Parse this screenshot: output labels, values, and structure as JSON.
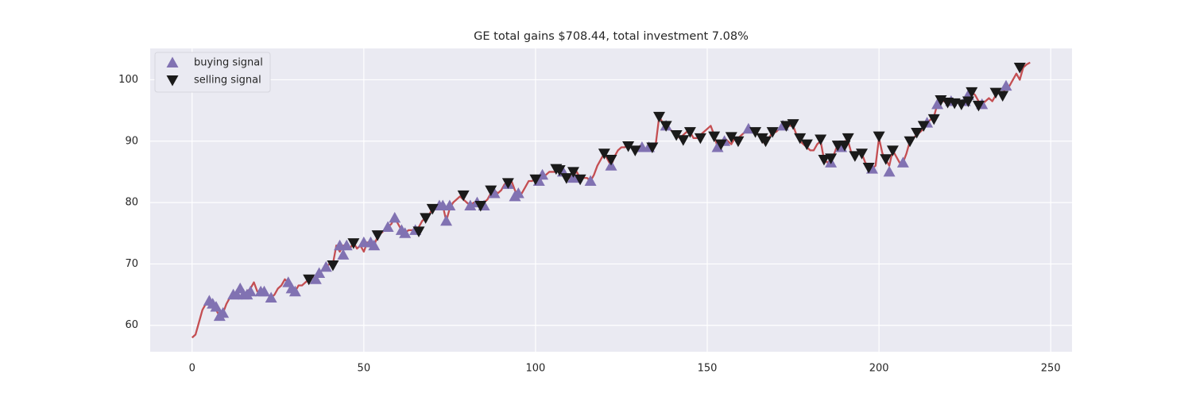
{
  "chart_data": {
    "type": "line",
    "title": "GE total gains $708.44, total investment 7.08%",
    "x": [
      0,
      1,
      2,
      3,
      4,
      5,
      6,
      7,
      8,
      9,
      10,
      11,
      12,
      13,
      14,
      15,
      16,
      17,
      18,
      19,
      20,
      21,
      22,
      23,
      24,
      25,
      26,
      27,
      28,
      29,
      30,
      31,
      32,
      33,
      34,
      35,
      36,
      37,
      38,
      39,
      40,
      41,
      42,
      43,
      44,
      45,
      46,
      47,
      48,
      49,
      50,
      51,
      52,
      53,
      54,
      55,
      56,
      57,
      58,
      59,
      60,
      61,
      62,
      63,
      64,
      65,
      66,
      67,
      68,
      69,
      70,
      71,
      72,
      73,
      74,
      75,
      76,
      77,
      78,
      79,
      80,
      81,
      82,
      83,
      84,
      85,
      86,
      87,
      88,
      89,
      90,
      91,
      92,
      93,
      94,
      95,
      96,
      97,
      98,
      99,
      100,
      101,
      102,
      103,
      104,
      105,
      106,
      107,
      108,
      109,
      110,
      111,
      112,
      113,
      114,
      115,
      116,
      117,
      118,
      119,
      120,
      121,
      122,
      123,
      124,
      125,
      126,
      127,
      128,
      129,
      130,
      131,
      132,
      133,
      134,
      135,
      136,
      137,
      138,
      139,
      140,
      141,
      142,
      143,
      144,
      145,
      146,
      147,
      148,
      149,
      150,
      151,
      152,
      153,
      154,
      155,
      156,
      157,
      158,
      159,
      160,
      161,
      162,
      163,
      164,
      165,
      166,
      167,
      168,
      169,
      170,
      171,
      172,
      173,
      174,
      175,
      176,
      177,
      178,
      179,
      180,
      181,
      182,
      183,
      184,
      185,
      186,
      187,
      188,
      189,
      190,
      191,
      192,
      193,
      194,
      195,
      196,
      197,
      198,
      199,
      200,
      201,
      202,
      203,
      204,
      205,
      206,
      207,
      208,
      209,
      210,
      211,
      212,
      213,
      214,
      215,
      216,
      217,
      218,
      219,
      220,
      221,
      222,
      223,
      224,
      225,
      226,
      227,
      228,
      229,
      230,
      231,
      232,
      233,
      234,
      235,
      236,
      237,
      238,
      239,
      240,
      241,
      242,
      243,
      244
    ],
    "values": [
      58,
      58.5,
      60.5,
      62.5,
      63.5,
      64,
      63.5,
      62.5,
      61.5,
      62,
      63.5,
      64.5,
      65,
      65,
      66,
      65,
      65.5,
      66,
      67,
      65.5,
      65.5,
      66,
      65,
      64.5,
      65,
      66,
      66.5,
      67.5,
      67,
      66,
      65.5,
      66.5,
      66.5,
      67,
      67.5,
      68,
      67.5,
      68.5,
      69,
      69.5,
      70,
      70,
      73,
      72,
      73,
      73,
      72.5,
      73.5,
      72.5,
      73,
      72,
      73.5,
      73,
      73,
      74.5,
      75,
      75.5,
      76,
      76.5,
      77.5,
      76.5,
      75.5,
      75,
      75.5,
      75.5,
      75.5,
      76,
      77,
      77.5,
      78,
      79,
      79.5,
      79.5,
      79.5,
      77,
      79,
      80,
      80.5,
      81,
      80.5,
      80,
      79.5,
      80,
      80,
      79.5,
      80,
      80.5,
      81.5,
      82,
      81.5,
      82,
      83,
      83,
      83.5,
      82,
      81,
      81.5,
      82.5,
      83.5,
      83.5,
      84,
      83.5,
      84,
      84.5,
      85,
      85,
      85,
      85.5,
      85,
      84.5,
      84,
      84.5,
      85,
      84,
      84,
      84,
      83.5,
      84.5,
      86,
      87,
      88,
      87,
      86,
      87.5,
      88.5,
      89,
      89,
      89.5,
      89,
      88.5,
      89,
      89.5,
      88.5,
      89,
      89,
      89.5,
      94,
      93,
      92.5,
      92,
      91.5,
      91,
      90.5,
      91,
      91.5,
      91.5,
      90.5,
      90.5,
      91,
      91.5,
      92,
      92.5,
      91,
      89,
      89.5,
      90.5,
      90,
      89.5,
      90.5,
      90.5,
      91,
      91.5,
      92,
      92,
      91.5,
      91,
      90,
      89.5,
      90.5,
      91.5,
      91.5,
      92,
      92.5,
      93,
      92.5,
      92.5,
      91,
      90,
      89.5,
      89,
      88.5,
      88.5,
      89.5,
      90,
      87,
      86.5,
      87,
      88,
      89.5,
      89,
      90,
      90,
      88,
      87.5,
      88,
      88,
      86.5,
      86,
      85.5,
      86,
      90.5,
      88,
      87,
      86,
      88.5,
      87.5,
      86.5,
      86.5,
      88,
      90,
      90.5,
      91,
      91.5,
      92,
      93,
      93.5,
      94,
      96,
      96.5,
      96.5,
      96,
      96.5,
      96,
      96.5,
      96.5,
      96,
      97,
      98,
      97.5,
      96.5,
      96,
      96.5,
      97,
      96.5,
      97.5,
      98,
      97.5,
      99,
      99,
      100,
      101,
      100,
      102,
      102.5,
      102.8
    ],
    "color": "#c44e52",
    "signals": [
      {
        "name": "buying signal",
        "color": "#8172b2",
        "marker": "^",
        "x": [
          5,
          6,
          7,
          8,
          9,
          12,
          13,
          14,
          15,
          16,
          17,
          20,
          21,
          23,
          28,
          29,
          30,
          36,
          37,
          39,
          43,
          44,
          45,
          50,
          52,
          53,
          57,
          59,
          61,
          62,
          65,
          72,
          73,
          74,
          75,
          81,
          83,
          85,
          88,
          92,
          94,
          95,
          101,
          102,
          108,
          111,
          116,
          122,
          131,
          133,
          138,
          153,
          155,
          162,
          172,
          186,
          189,
          198,
          203,
          207,
          214,
          217,
          221,
          225,
          226,
          230,
          237
        ],
        "values": [
          64,
          63.5,
          63,
          61.5,
          62,
          65,
          65,
          66,
          65,
          65,
          65.5,
          65.5,
          65.5,
          64.5,
          67,
          66,
          65.5,
          67.5,
          68.5,
          69.5,
          73,
          71.5,
          73,
          73.5,
          73.5,
          73,
          76,
          77.5,
          75.5,
          75,
          75.5,
          79.5,
          79.5,
          77,
          79.5,
          79.5,
          80,
          79.5,
          81.5,
          83,
          81,
          81.5,
          83.5,
          84.5,
          85,
          84,
          83.5,
          86,
          89,
          89,
          92.5,
          89,
          90,
          92,
          92.5,
          86.5,
          89,
          85.5,
          85,
          86.5,
          93,
          96,
          96.5,
          96.5,
          97.5,
          96,
          99
        ]
      },
      {
        "name": "selling signal",
        "color": "#1a1a1a",
        "marker": "v",
        "x": [
          34,
          41,
          47,
          54,
          66,
          68,
          70,
          79,
          84,
          87,
          92,
          100,
          106,
          107,
          109,
          111,
          113,
          120,
          122,
          127,
          129,
          134,
          136,
          138,
          141,
          143,
          145,
          148,
          152,
          154,
          157,
          159,
          164,
          166,
          167,
          169,
          173,
          175,
          177,
          179,
          183,
          184,
          186,
          188,
          190,
          191,
          193,
          195,
          197,
          200,
          202,
          204,
          209,
          211,
          213,
          216,
          218,
          220,
          222,
          224,
          226,
          227,
          229,
          234,
          236,
          241
        ],
        "values": [
          67.5,
          69.8,
          73.4,
          74.7,
          75.3,
          77.5,
          79,
          81.2,
          79.5,
          82,
          83.2,
          83.8,
          85.5,
          85.3,
          84,
          85,
          83.8,
          88,
          87,
          89.2,
          88.5,
          89,
          94,
          92.5,
          91,
          90.2,
          91.5,
          90.5,
          90.8,
          89.5,
          90.7,
          90,
          91.5,
          90.5,
          90,
          91.5,
          92.5,
          92.8,
          90.5,
          89.5,
          90.3,
          87,
          87.2,
          89.3,
          89.3,
          90.5,
          87.6,
          88,
          85.7,
          90.8,
          87.1,
          88.5,
          90,
          91.4,
          92.5,
          93.6,
          96.7,
          96.3,
          96.2,
          96,
          96.5,
          98,
          95.8,
          97.9,
          97.4,
          102
        ]
      }
    ],
    "xlim": [
      -12.2,
      256.2
    ],
    "ylim": [
      55.7,
      105.1
    ],
    "xticks": [
      0,
      50,
      100,
      150,
      200,
      250
    ],
    "yticks": [
      60,
      70,
      80,
      90,
      100
    ],
    "grid": true,
    "legend": "upper left"
  }
}
